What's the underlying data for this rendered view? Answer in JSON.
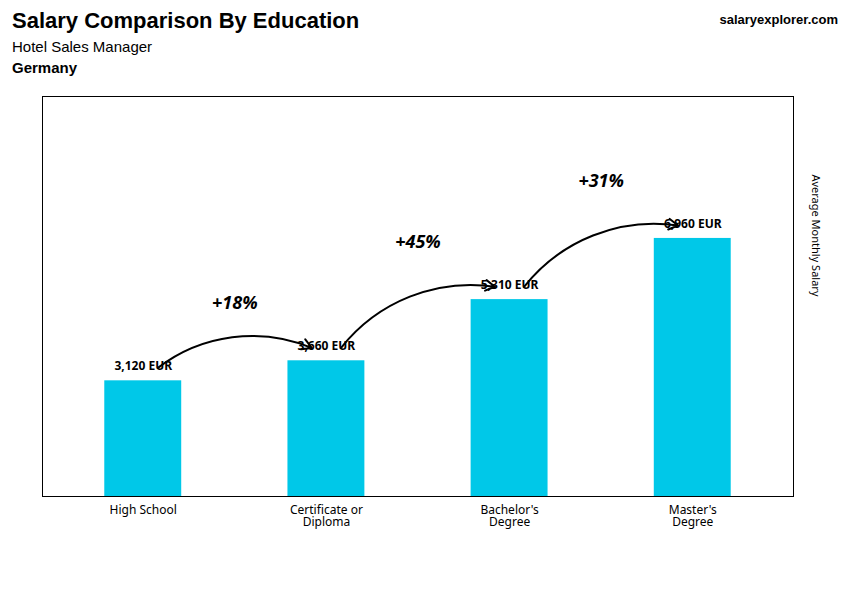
{
  "chart_data": {
    "type": "bar",
    "title": "Salary Comparison By Education",
    "subtitle": "Hotel Sales Manager",
    "ylabel": "Average Monthly Salary",
    "categories": [
      "High School",
      "Certificate or\nDiploma",
      "Bachelor's\nDegree",
      "Master's\nDegree"
    ],
    "values": [
      3120,
      3660,
      5310,
      6960
    ],
    "value_labels": [
      "3,120 EUR",
      "3,660 EUR",
      "5,310 EUR",
      "6,960 EUR"
    ],
    "data_labels": true,
    "color": "#00c8e8",
    "ylim": [
      0,
      10788
    ],
    "yticks": [],
    "tick_labels": "x",
    "annotations": [
      {
        "text": "Germany"
      },
      {
        "text": "salaryexplorer.com"
      },
      {
        "text": "+18%",
        "from": "High School",
        "to": "Certificate or\nDiploma"
      },
      {
        "text": "+45%",
        "from": "Certificate or\nDiploma",
        "to": "Bachelor's\nDegree"
      },
      {
        "text": "+31%",
        "from": "Bachelor's\nDegree",
        "to": "Master's\nDegree"
      }
    ]
  }
}
